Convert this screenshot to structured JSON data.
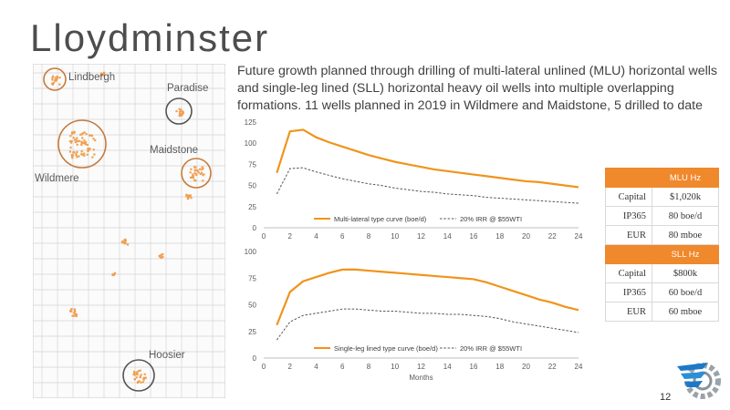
{
  "title": "Lloydminster",
  "intro": "Future growth planned through drilling of multi-lateral unlined (MLU) horizontal wells and single-leg lined (SLL) horizontal heavy oil wells into multiple overlapping formations. 11 wells planned in 2019 in Wildmere and Maidstone, 5 drilled to date",
  "map": {
    "labels": {
      "lindbergh": "Lindbergh",
      "paradise": "Paradise",
      "maidstone": "Maidstone",
      "wildmere": "Wildmere",
      "hoosier": "Hoosier"
    },
    "accent_color": "#f0a050",
    "circle_color": "#d07a3a"
  },
  "metrics_table": {
    "mlu": {
      "header": "MLU Hz",
      "rows": [
        {
          "label": "Capital",
          "value": "$1,020k"
        },
        {
          "label": "IP365",
          "value": "80 boe/d"
        },
        {
          "label": "EUR",
          "value": "80 mboe"
        }
      ]
    },
    "sll": {
      "header": "SLL Hz",
      "rows": [
        {
          "label": "Capital",
          "value": "$800k"
        },
        {
          "label": "IP365",
          "value": "60 boe/d"
        },
        {
          "label": "EUR",
          "value": "60 mboe"
        }
      ]
    }
  },
  "page_number": "12",
  "chart_data": [
    {
      "type": "line",
      "title": "",
      "xlabel": "",
      "ylabel": "",
      "x": [
        1,
        2,
        3,
        4,
        5,
        6,
        7,
        8,
        9,
        10,
        11,
        12,
        13,
        14,
        15,
        16,
        17,
        18,
        19,
        20,
        21,
        22,
        23,
        24
      ],
      "xticks": [
        "0",
        "2",
        "4",
        "6",
        "8",
        "10",
        "12",
        "14",
        "16",
        "18",
        "20",
        "22",
        "24"
      ],
      "yticks": [
        "0",
        "25",
        "50",
        "75",
        "100",
        "125"
      ],
      "xlim": [
        0,
        24
      ],
      "ylim": [
        0,
        125
      ],
      "legend_position": "bottom",
      "series": [
        {
          "name": "Multi-lateral type curve (boe/d)",
          "style": "solid",
          "color": "#f0941c",
          "values": [
            65,
            114,
            116,
            107,
            101,
            96,
            91,
            86,
            82,
            78,
            75,
            72,
            69,
            67,
            65,
            63,
            61,
            59,
            57,
            55,
            54,
            52,
            50,
            48
          ]
        },
        {
          "name": "20% IRR @ $55WTI",
          "style": "dashed",
          "color": "#555555",
          "values": [
            40,
            70,
            71,
            66,
            62,
            58,
            55,
            52,
            50,
            47,
            45,
            43,
            42,
            40,
            39,
            38,
            36,
            35,
            34,
            33,
            32,
            31,
            30,
            29
          ]
        }
      ]
    },
    {
      "type": "line",
      "title": "",
      "xlabel": "Months",
      "ylabel": "",
      "x": [
        1,
        2,
        3,
        4,
        5,
        6,
        7,
        8,
        9,
        10,
        11,
        12,
        13,
        14,
        15,
        16,
        17,
        18,
        19,
        20,
        21,
        22,
        23,
        24
      ],
      "xticks": [
        "0",
        "2",
        "4",
        "6",
        "8",
        "10",
        "12",
        "14",
        "16",
        "18",
        "20",
        "22",
        "24"
      ],
      "yticks": [
        "0",
        "25",
        "50",
        "75",
        "100"
      ],
      "xlim": [
        0,
        24
      ],
      "ylim": [
        0,
        100
      ],
      "legend_position": "bottom",
      "series": [
        {
          "name": "Single-leg lined type curve (boe/d)",
          "style": "solid",
          "color": "#f0941c",
          "values": [
            31,
            62,
            72,
            76,
            80,
            83,
            83,
            82,
            81,
            80,
            79,
            78,
            77,
            76,
            75,
            74,
            71,
            67,
            63,
            59,
            55,
            52,
            48,
            45
          ]
        },
        {
          "name": "20% IRR @ $55WTI",
          "style": "dashed",
          "color": "#555555",
          "values": [
            17,
            34,
            40,
            42,
            44,
            46,
            46,
            45,
            44,
            44,
            43,
            42,
            42,
            41,
            41,
            40,
            39,
            37,
            34,
            32,
            30,
            28,
            26,
            24
          ]
        }
      ]
    }
  ]
}
